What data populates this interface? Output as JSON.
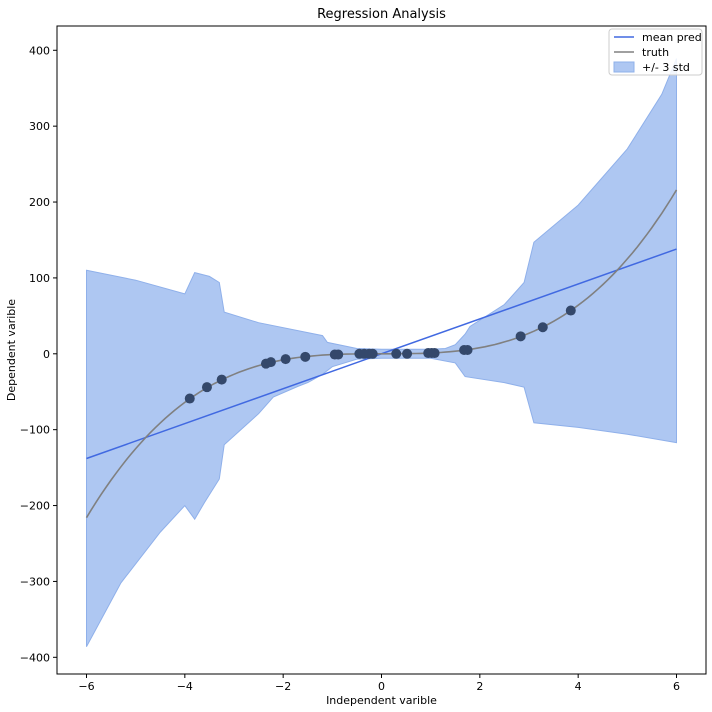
{
  "chart_data": {
    "type": "line",
    "title": "Regression Analysis",
    "xlabel": "Independent varible",
    "ylabel": "Dependent varible",
    "xlim": [
      -6.6,
      6.6
    ],
    "ylim": [
      -422,
      432
    ],
    "xticks": [
      -6,
      -4,
      -2,
      0,
      2,
      4,
      6
    ],
    "yticks": [
      -400,
      -300,
      -200,
      -100,
      0,
      100,
      200,
      300,
      400
    ],
    "grid": false,
    "legend_position": "top-right",
    "colors": {
      "mean_pred": "#4169e1",
      "truth": "#808080",
      "band_fill": "#aec7f2",
      "band_edge": "#8fb0ea",
      "points": "#34486b"
    },
    "legend": [
      {
        "label": "mean pred",
        "kind": "line",
        "series": "mean_pred"
      },
      {
        "label": "truth",
        "kind": "line",
        "series": "truth"
      },
      {
        "label": "+/- 3 std",
        "kind": "patch",
        "series": "band"
      }
    ],
    "series": [
      {
        "name": "mean pred",
        "key": "mean_pred",
        "x": [
          -6,
          6
        ],
        "y": [
          -138,
          138
        ]
      },
      {
        "name": "truth",
        "key": "truth",
        "function": "x^3",
        "x_range": [
          -6,
          6
        ]
      },
      {
        "name": "+/- 3 std",
        "key": "band",
        "upper": [
          [
            -6,
            110
          ],
          [
            -5,
            97
          ],
          [
            -4,
            79
          ],
          [
            -3.8,
            107
          ],
          [
            -3.5,
            102
          ],
          [
            -3.3,
            94
          ],
          [
            -3.2,
            55
          ],
          [
            -2.5,
            41
          ],
          [
            -1.2,
            24
          ],
          [
            -1.1,
            15
          ],
          [
            -0.5,
            7
          ],
          [
            0,
            6
          ],
          [
            1,
            6
          ],
          [
            1.3,
            7
          ],
          [
            1.5,
            12
          ],
          [
            1.7,
            26
          ],
          [
            1.8,
            36
          ],
          [
            2.5,
            65
          ],
          [
            2.9,
            94
          ],
          [
            3.1,
            147
          ],
          [
            4,
            196
          ],
          [
            5,
            270
          ],
          [
            5.7,
            342
          ],
          [
            6,
            389
          ]
        ],
        "lower": [
          [
            -6,
            -386
          ],
          [
            -5.3,
            -302
          ],
          [
            -4.5,
            -235
          ],
          [
            -4,
            -200
          ],
          [
            -3.8,
            -218
          ],
          [
            -3.6,
            -196
          ],
          [
            -3.3,
            -165
          ],
          [
            -3.2,
            -120
          ],
          [
            -2.5,
            -79
          ],
          [
            -2.2,
            -57
          ],
          [
            -1.7,
            -43
          ],
          [
            -1.5,
            -38
          ],
          [
            -1.2,
            -27
          ],
          [
            -1,
            -17
          ],
          [
            -0.5,
            -7
          ],
          [
            0,
            -6
          ],
          [
            1,
            -6
          ],
          [
            1.5,
            -12
          ],
          [
            1.7,
            -30
          ],
          [
            2.5,
            -38
          ],
          [
            2.9,
            -44
          ],
          [
            3.1,
            -91
          ],
          [
            4,
            -97
          ],
          [
            5,
            -106
          ],
          [
            6,
            -117
          ]
        ]
      },
      {
        "name": "observations",
        "key": "points",
        "x": [
          -3.9,
          -3.55,
          -3.25,
          -2.35,
          -2.25,
          -1.95,
          -1.55,
          -0.95,
          -0.88,
          -0.45,
          -0.35,
          -0.25,
          -0.18,
          0.3,
          0.52,
          0.95,
          1.02,
          1.08,
          1.68,
          1.75,
          2.83,
          3.28,
          3.85
        ],
        "y": [
          -59,
          -44,
          -34,
          -13,
          -11,
          -7,
          -4,
          -1,
          -1,
          0,
          0,
          0,
          0,
          0,
          0,
          1,
          1,
          1,
          5,
          5,
          23,
          35,
          57
        ]
      }
    ]
  }
}
